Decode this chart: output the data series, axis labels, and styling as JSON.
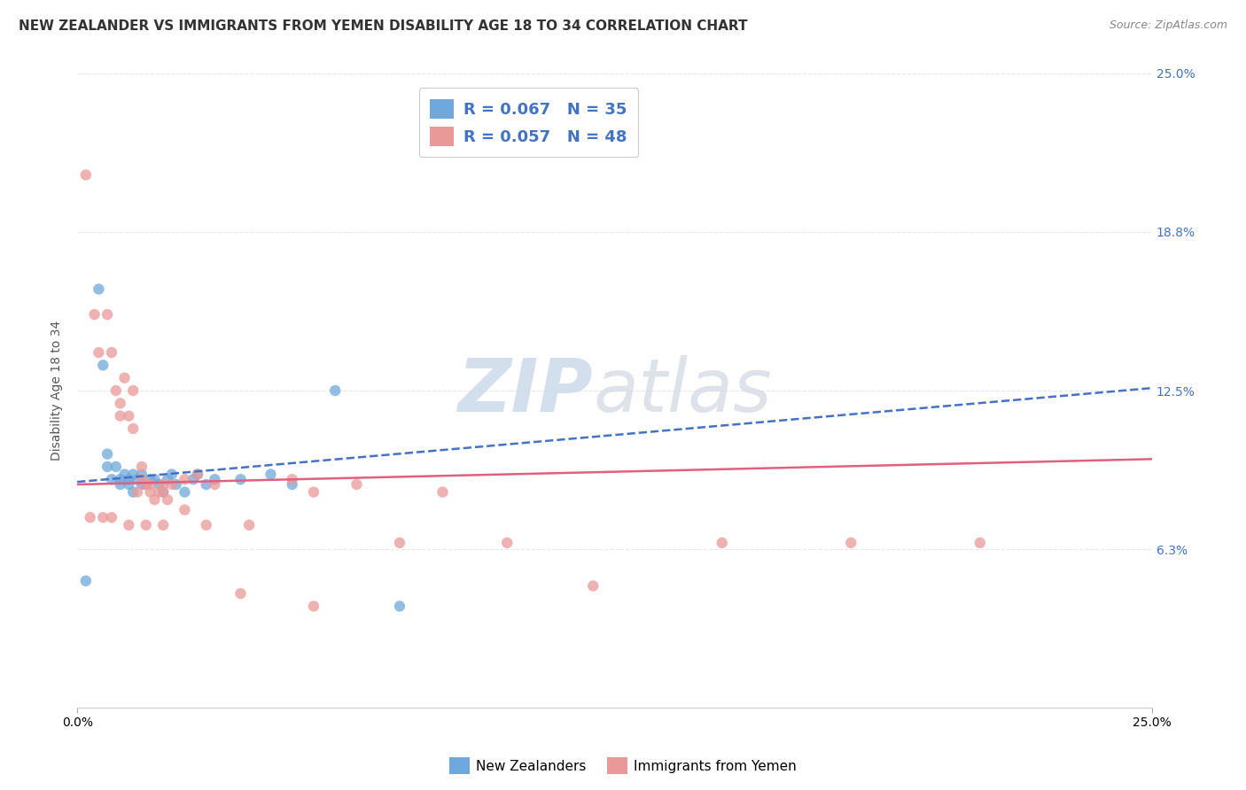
{
  "title": "NEW ZEALANDER VS IMMIGRANTS FROM YEMEN DISABILITY AGE 18 TO 34 CORRELATION CHART",
  "source": "Source: ZipAtlas.com",
  "ylabel": "Disability Age 18 to 34",
  "xmin": 0.0,
  "xmax": 0.25,
  "ymin": 0.0,
  "ymax": 0.25,
  "nz_color": "#6fa8dc",
  "yemen_color": "#ea9999",
  "nz_R": 0.067,
  "nz_N": 35,
  "yemen_R": 0.057,
  "yemen_N": 48,
  "nz_scatter_x": [
    0.002,
    0.005,
    0.006,
    0.007,
    0.007,
    0.008,
    0.009,
    0.01,
    0.01,
    0.011,
    0.012,
    0.012,
    0.013,
    0.013,
    0.014,
    0.015,
    0.015,
    0.016,
    0.017,
    0.018,
    0.019,
    0.02,
    0.021,
    0.022,
    0.023,
    0.025,
    0.027,
    0.028,
    0.03,
    0.032,
    0.038,
    0.045,
    0.05,
    0.06,
    0.075
  ],
  "nz_scatter_y": [
    0.05,
    0.165,
    0.135,
    0.095,
    0.1,
    0.09,
    0.095,
    0.088,
    0.09,
    0.092,
    0.088,
    0.09,
    0.085,
    0.092,
    0.09,
    0.088,
    0.092,
    0.088,
    0.09,
    0.09,
    0.088,
    0.085,
    0.09,
    0.092,
    0.088,
    0.085,
    0.09,
    0.092,
    0.088,
    0.09,
    0.09,
    0.092,
    0.088,
    0.125,
    0.04
  ],
  "yemen_scatter_x": [
    0.002,
    0.004,
    0.005,
    0.007,
    0.008,
    0.009,
    0.01,
    0.01,
    0.011,
    0.012,
    0.013,
    0.013,
    0.014,
    0.015,
    0.015,
    0.016,
    0.017,
    0.017,
    0.018,
    0.019,
    0.02,
    0.02,
    0.021,
    0.022,
    0.025,
    0.025,
    0.028,
    0.032,
    0.038,
    0.05,
    0.055,
    0.065,
    0.075,
    0.085,
    0.1,
    0.12,
    0.15,
    0.18,
    0.21,
    0.003,
    0.006,
    0.008,
    0.012,
    0.016,
    0.02,
    0.03,
    0.04,
    0.055
  ],
  "yemen_scatter_y": [
    0.21,
    0.155,
    0.14,
    0.155,
    0.14,
    0.125,
    0.115,
    0.12,
    0.13,
    0.115,
    0.125,
    0.11,
    0.085,
    0.09,
    0.095,
    0.088,
    0.085,
    0.088,
    0.082,
    0.085,
    0.088,
    0.085,
    0.082,
    0.088,
    0.09,
    0.078,
    0.092,
    0.088,
    0.045,
    0.09,
    0.085,
    0.088,
    0.065,
    0.085,
    0.065,
    0.048,
    0.065,
    0.065,
    0.065,
    0.075,
    0.075,
    0.075,
    0.072,
    0.072,
    0.072,
    0.072,
    0.072,
    0.04
  ],
  "nz_line_x": [
    0.0,
    0.25
  ],
  "nz_line_y": [
    0.089,
    0.126
  ],
  "yemen_line_x": [
    0.0,
    0.25
  ],
  "yemen_line_y": [
    0.088,
    0.098
  ],
  "nz_trend_color": "#4472c4",
  "yemen_trend_color": "#e06080",
  "background_color": "#ffffff",
  "grid_color": "#e8e8e8",
  "title_fontsize": 11,
  "label_fontsize": 10
}
